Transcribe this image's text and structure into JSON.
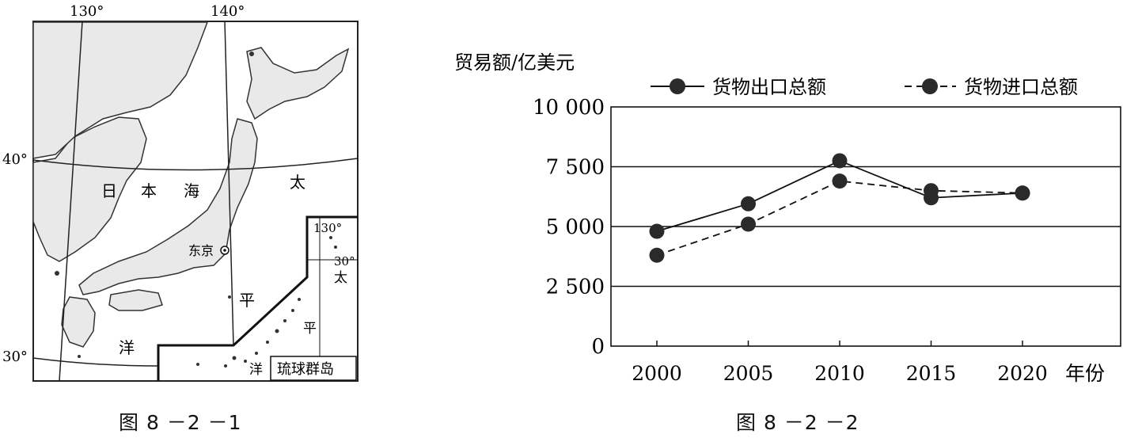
{
  "map": {
    "longitude_labels": [
      "130°",
      "140°"
    ],
    "latitude_labels": [
      "40°",
      "30°"
    ],
    "sea_labels": {
      "japan_sea": [
        "日",
        "本",
        "海"
      ],
      "pacific": [
        "太",
        "平",
        "洋"
      ]
    },
    "city": "东京",
    "inset": {
      "title": "琉球群岛",
      "longitude_label": "130°",
      "latitude_label": "30°",
      "sea_labels": [
        "太",
        "平",
        "洋"
      ]
    },
    "caption": "图 8 －2 －1"
  },
  "chart_data": {
    "type": "line",
    "title": "",
    "ylabel": "贸易额/亿美元",
    "xlabel": "年份",
    "categories": [
      "2000",
      "2005",
      "2010",
      "2015",
      "2020"
    ],
    "ylim": [
      0,
      10000
    ],
    "yticks": [
      "0",
      "2 500",
      "5 000",
      "7 500",
      "10 000"
    ],
    "ytick_values": [
      0,
      2500,
      5000,
      7500,
      10000
    ],
    "legend_position": "top",
    "series": [
      {
        "name": "货物出口总额",
        "style": "solid",
        "values": [
          4800,
          5950,
          7750,
          6200,
          6400
        ]
      },
      {
        "name": "货物进口总额",
        "style": "dashed",
        "values": [
          3800,
          5100,
          6900,
          6500,
          6400
        ]
      }
    ],
    "caption": "图 8 －2 －2"
  }
}
